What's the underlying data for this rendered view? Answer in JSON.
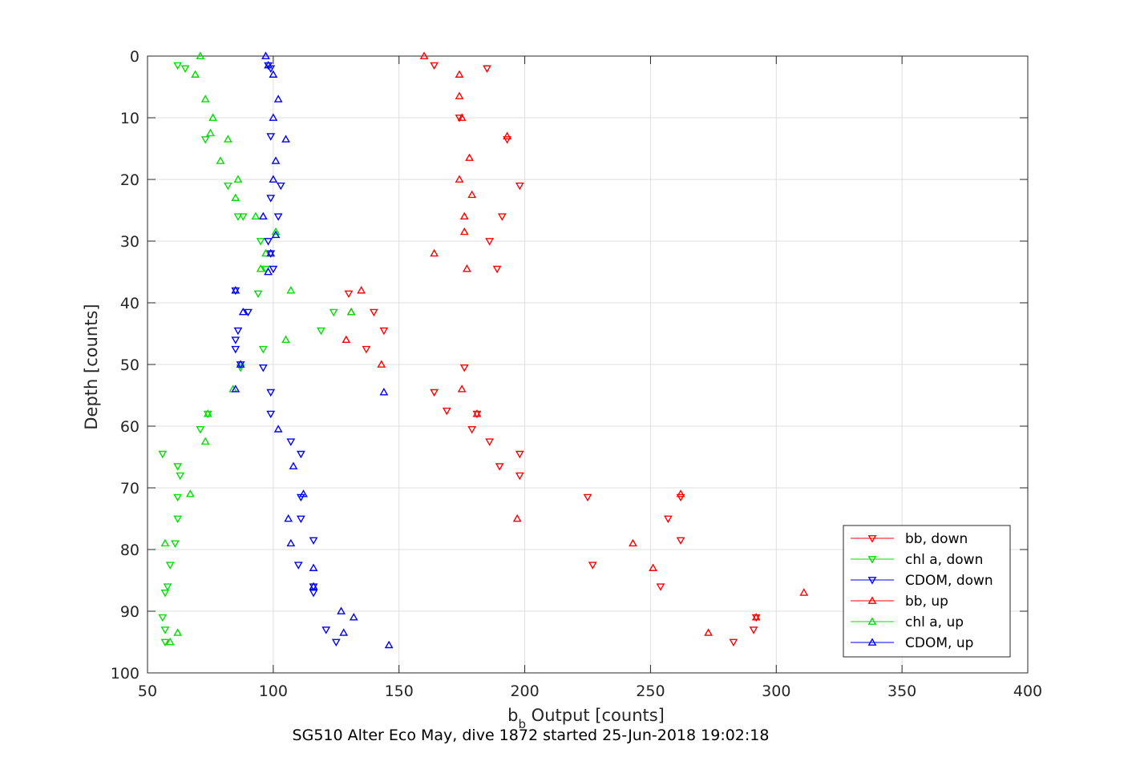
{
  "chart_data": {
    "type": "scatter",
    "xlabel": "b",
    "xlabel_sub": "b",
    "xlabel_rest": " Output [counts]",
    "ylabel": "Depth [counts]",
    "caption": "SG510 Alter Eco May, dive 1872 started 25-Jun-2018 19:02:18",
    "xlim": [
      50,
      400
    ],
    "ylim": [
      0,
      100
    ],
    "y_reversed": true,
    "grid": true,
    "legend_position": "bottom-right",
    "xticks": [
      "50",
      "100",
      "150",
      "200",
      "250",
      "300",
      "350",
      "400"
    ],
    "yticks": [
      "0",
      "10",
      "20",
      "30",
      "40",
      "50",
      "60",
      "70",
      "80",
      "90",
      "100"
    ],
    "series": [
      {
        "name": "bb, down",
        "color": "#ff0000",
        "marker": "triangle-down",
        "x": [
          164,
          185,
          174,
          193,
          198,
          191,
          186,
          189,
          130,
          140,
          144,
          137,
          176,
          164,
          169,
          181,
          179,
          186,
          198,
          190,
          198,
          225,
          262,
          257,
          262,
          227,
          254,
          292,
          291,
          283
        ],
        "y": [
          1.5,
          2,
          10,
          13.5,
          21,
          26,
          30,
          34.5,
          38.5,
          41.5,
          44.5,
          47.5,
          50.5,
          54.5,
          57.5,
          58,
          60.5,
          62.5,
          64.5,
          66.5,
          68,
          71.5,
          71.5,
          75,
          78.5,
          82.5,
          86,
          91,
          93,
          95
        ]
      },
      {
        "name": "chl a, down",
        "color": "#00dd00",
        "marker": "triangle-down",
        "x": [
          62,
          65,
          73,
          82,
          86,
          88,
          95,
          97,
          94,
          124,
          119,
          96,
          87,
          74,
          71,
          56,
          62,
          63,
          62,
          62,
          61,
          59,
          58,
          57,
          56,
          57,
          57
        ],
        "y": [
          1.5,
          2,
          13.5,
          21,
          26,
          26,
          30,
          34.5,
          38.5,
          41.5,
          44.5,
          47.5,
          50.5,
          58,
          60.5,
          64.5,
          66.5,
          68,
          71.5,
          75,
          79,
          82.5,
          86,
          87,
          91,
          93,
          95
        ]
      },
      {
        "name": "CDOM, down",
        "color": "#0000ff",
        "marker": "triangle-down",
        "x": [
          98,
          99,
          99,
          103,
          99,
          102,
          98,
          99,
          100,
          85,
          90,
          86,
          85,
          85,
          87,
          96,
          99,
          99,
          107,
          111,
          111,
          111,
          116,
          110,
          116,
          116,
          121,
          125
        ],
        "y": [
          1.5,
          2,
          13,
          21,
          23,
          26,
          30,
          32,
          34.5,
          38,
          41.5,
          44.5,
          46,
          47.5,
          50,
          50.5,
          54.5,
          58,
          62.5,
          64.5,
          71.5,
          75,
          78.5,
          82.5,
          86,
          87,
          93,
          95
        ]
      },
      {
        "name": "bb, up",
        "color": "#ff0000",
        "marker": "triangle-up",
        "x": [
          160,
          174,
          174,
          175,
          193,
          178,
          174,
          179,
          176,
          176,
          164,
          177,
          135,
          131,
          129,
          143,
          175,
          181,
          197,
          262,
          311,
          292,
          273,
          243,
          251
        ],
        "y": [
          0,
          3,
          6.5,
          10,
          13,
          16.5,
          20,
          22.5,
          26,
          28.5,
          32,
          34.5,
          38,
          41.5,
          46,
          50,
          54,
          58,
          75,
          71,
          87,
          91,
          93.5,
          79,
          83
        ]
      },
      {
        "name": "chl a, up",
        "color": "#00dd00",
        "marker": "triangle-up",
        "x": [
          71,
          69,
          73,
          76,
          75,
          82,
          79,
          86,
          85,
          93,
          101,
          97,
          95,
          107,
          131,
          105,
          84,
          74,
          73,
          67,
          57,
          62,
          59
        ],
        "y": [
          0,
          3,
          7,
          10,
          12.5,
          13.5,
          17,
          20,
          23,
          26,
          28.5,
          32,
          34.5,
          38,
          41.5,
          46,
          54,
          58,
          62.5,
          71,
          79,
          93.5,
          95
        ]
      },
      {
        "name": "CDOM, up",
        "color": "#0000ff",
        "marker": "triangle-up",
        "x": [
          97,
          98,
          100,
          102,
          100,
          105,
          101,
          100,
          96,
          101,
          99,
          98,
          85,
          88,
          87,
          85,
          144,
          102,
          108,
          112,
          106,
          107,
          116,
          116,
          127,
          132,
          128,
          146
        ],
        "y": [
          0,
          1.5,
          3,
          7,
          10,
          13.5,
          17,
          20,
          26,
          29,
          32,
          35,
          38,
          41.5,
          50,
          54,
          54.5,
          60.5,
          66.5,
          71,
          75,
          79,
          83,
          86,
          90,
          91,
          93.5,
          95.5
        ]
      }
    ]
  }
}
